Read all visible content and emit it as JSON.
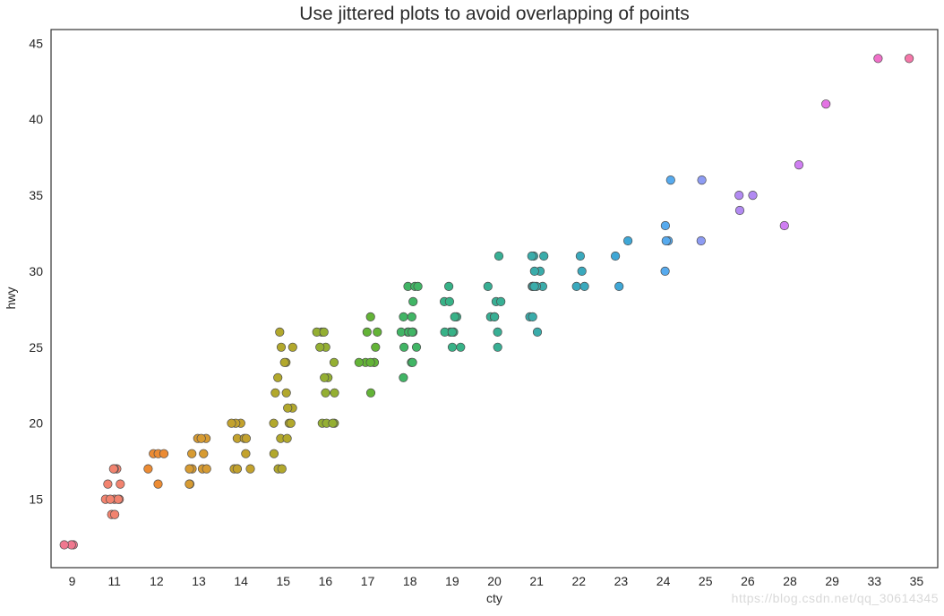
{
  "title": "Use jittered plots to avoid overlapping of points",
  "watermark": "https://blog.csdn.net/qq_30614345",
  "colors": {
    "background": "#ffffff",
    "spine": "#333333",
    "tick_label": "#262626",
    "marker_edge": "#4d4d4d",
    "watermark": "#d9d9d9"
  },
  "chart_data": {
    "type": "scatter",
    "variant": "jittered-stripplot",
    "title": "Use jittered plots to avoid overlapping of points",
    "xlabel": "cty",
    "ylabel": "hwy",
    "x_categories": [
      "9",
      "11",
      "12",
      "13",
      "14",
      "15",
      "16",
      "17",
      "18",
      "19",
      "20",
      "21",
      "22",
      "23",
      "24",
      "25",
      "26",
      "28",
      "29",
      "33",
      "35"
    ],
    "y_ticks": [
      15,
      20,
      25,
      30,
      35,
      40,
      45
    ],
    "ylim": [
      10.5,
      45.9
    ],
    "grid": false,
    "legend": "none",
    "jitter": 0.25,
    "marker_size_px": 9.5,
    "series": [
      {
        "cty": 9,
        "color": "#f0788f",
        "points": [
          {
            "hwy": 12,
            "n": 3
          }
        ]
      },
      {
        "cty": 11,
        "color": "#f2836f",
        "points": [
          {
            "hwy": 14,
            "n": 2
          },
          {
            "hwy": 15,
            "n": 5
          },
          {
            "hwy": 16,
            "n": 2
          },
          {
            "hwy": 17,
            "n": 3
          }
        ]
      },
      {
        "cty": 12,
        "color": "#ec8b33",
        "points": [
          {
            "hwy": 16,
            "n": 1
          },
          {
            "hwy": 17,
            "n": 1
          },
          {
            "hwy": 18,
            "n": 3
          }
        ]
      },
      {
        "cty": 13,
        "color": "#d79b32",
        "points": [
          {
            "hwy": 16,
            "n": 2
          },
          {
            "hwy": 17,
            "n": 4
          },
          {
            "hwy": 18,
            "n": 2
          },
          {
            "hwy": 19,
            "n": 3
          }
        ]
      },
      {
        "cty": 14,
        "color": "#c3a22d",
        "points": [
          {
            "hwy": 17,
            "n": 4
          },
          {
            "hwy": 18,
            "n": 1
          },
          {
            "hwy": 19,
            "n": 3
          },
          {
            "hwy": 20,
            "n": 3
          }
        ]
      },
      {
        "cty": 15,
        "color": "#b2a82c",
        "points": [
          {
            "hwy": 17,
            "n": 2
          },
          {
            "hwy": 18,
            "n": 1
          },
          {
            "hwy": 19,
            "n": 2
          },
          {
            "hwy": 20,
            "n": 3
          },
          {
            "hwy": 21,
            "n": 2
          },
          {
            "hwy": 22,
            "n": 2
          },
          {
            "hwy": 23,
            "n": 1
          },
          {
            "hwy": 24,
            "n": 2
          },
          {
            "hwy": 25,
            "n": 2
          },
          {
            "hwy": 26,
            "n": 1
          }
        ]
      },
      {
        "cty": 16,
        "color": "#94af32",
        "points": [
          {
            "hwy": 20,
            "n": 4
          },
          {
            "hwy": 22,
            "n": 2
          },
          {
            "hwy": 23,
            "n": 2
          },
          {
            "hwy": 24,
            "n": 1
          },
          {
            "hwy": 25,
            "n": 2
          },
          {
            "hwy": 26,
            "n": 3
          }
        ]
      },
      {
        "cty": 17,
        "color": "#63b337",
        "points": [
          {
            "hwy": 22,
            "n": 1
          },
          {
            "hwy": 24,
            "n": 5
          },
          {
            "hwy": 25,
            "n": 1
          },
          {
            "hwy": 26,
            "n": 2
          },
          {
            "hwy": 27,
            "n": 1
          }
        ]
      },
      {
        "cty": 18,
        "color": "#41b565",
        "points": [
          {
            "hwy": 23,
            "n": 1
          },
          {
            "hwy": 24,
            "n": 2
          },
          {
            "hwy": 25,
            "n": 2
          },
          {
            "hwy": 26,
            "n": 5
          },
          {
            "hwy": 27,
            "n": 2
          },
          {
            "hwy": 28,
            "n": 1
          },
          {
            "hwy": 29,
            "n": 3
          }
        ]
      },
      {
        "cty": 19,
        "color": "#37b287",
        "points": [
          {
            "hwy": 25,
            "n": 2
          },
          {
            "hwy": 26,
            "n": 4
          },
          {
            "hwy": 27,
            "n": 2
          },
          {
            "hwy": 28,
            "n": 2
          },
          {
            "hwy": 29,
            "n": 1
          }
        ]
      },
      {
        "cty": 20,
        "color": "#38af94",
        "points": [
          {
            "hwy": 25,
            "n": 1
          },
          {
            "hwy": 26,
            "n": 1
          },
          {
            "hwy": 27,
            "n": 3
          },
          {
            "hwy": 28,
            "n": 2
          },
          {
            "hwy": 29,
            "n": 1
          },
          {
            "hwy": 31,
            "n": 1
          }
        ]
      },
      {
        "cty": 21,
        "color": "#3aacaa",
        "points": [
          {
            "hwy": 26,
            "n": 1
          },
          {
            "hwy": 27,
            "n": 2
          },
          {
            "hwy": 29,
            "n": 5
          },
          {
            "hwy": 30,
            "n": 2
          },
          {
            "hwy": 31,
            "n": 3
          }
        ]
      },
      {
        "cty": 22,
        "color": "#3aa9bd",
        "points": [
          {
            "hwy": 29,
            "n": 2
          },
          {
            "hwy": 30,
            "n": 1
          },
          {
            "hwy": 31,
            "n": 1
          }
        ]
      },
      {
        "cty": 23,
        "color": "#3fa7d6",
        "points": [
          {
            "hwy": 29,
            "n": 1
          },
          {
            "hwy": 31,
            "n": 1
          },
          {
            "hwy": 32,
            "n": 1
          }
        ]
      },
      {
        "cty": 24,
        "color": "#56aaee",
        "points": [
          {
            "hwy": 30,
            "n": 1
          },
          {
            "hwy": 32,
            "n": 2
          },
          {
            "hwy": 33,
            "n": 1
          },
          {
            "hwy": 36,
            "n": 1
          }
        ]
      },
      {
        "cty": 25,
        "color": "#8d9bf3",
        "points": [
          {
            "hwy": 32,
            "n": 1
          },
          {
            "hwy": 36,
            "n": 1
          }
        ]
      },
      {
        "cty": 26,
        "color": "#b28af2",
        "points": [
          {
            "hwy": 34,
            "n": 1
          },
          {
            "hwy": 35,
            "n": 2
          }
        ]
      },
      {
        "cty": 28,
        "color": "#cf7ef2",
        "points": [
          {
            "hwy": 33,
            "n": 1
          },
          {
            "hwy": 37,
            "n": 1
          }
        ]
      },
      {
        "cty": 29,
        "color": "#e473e4",
        "points": [
          {
            "hwy": 41,
            "n": 1
          }
        ]
      },
      {
        "cty": 33,
        "color": "#f070c9",
        "points": [
          {
            "hwy": 44,
            "n": 1
          }
        ]
      },
      {
        "cty": 35,
        "color": "#f577a9",
        "points": [
          {
            "hwy": 44,
            "n": 1
          }
        ]
      }
    ]
  }
}
